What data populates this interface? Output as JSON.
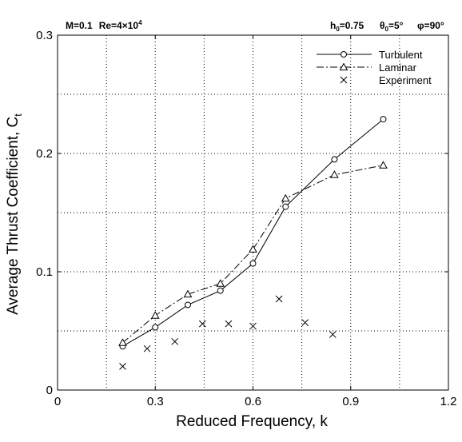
{
  "chart_data": {
    "type": "line",
    "xlabel": "Reduced Frequency, k",
    "ylabel": "Average Thrust Coefficient, C",
    "ylabel_sub": "t",
    "xlim": [
      0,
      1.2
    ],
    "ylim": [
      0,
      0.3
    ],
    "x_ticks": [
      0,
      0.3,
      0.6,
      0.9,
      1.2
    ],
    "x_tick_labels": [
      "0",
      "0.3",
      "0.6",
      "0.9",
      "1.2"
    ],
    "y_ticks": [
      0,
      0.1,
      0.2,
      0.3
    ],
    "y_tick_labels": [
      "0",
      "0.1",
      "0.2",
      "0.3"
    ],
    "grid": true,
    "legend_position": "top-right",
    "annotations": {
      "left": {
        "m_label": "M=0.1",
        "re_label": "Re=4×10",
        "re_exp": "4"
      },
      "right": {
        "h_label": "h",
        "h_sub": "0",
        "h_value": "=0.75",
        "theta_label": "θ",
        "theta_sub": "0",
        "theta_value": "=5°",
        "phi_label": "φ=90°"
      }
    },
    "series": [
      {
        "name": "Turbulent",
        "line": "solid",
        "marker": "circle",
        "x": [
          0.2,
          0.3,
          0.4,
          0.5,
          0.6,
          0.7,
          0.85,
          1.0
        ],
        "y": [
          0.037,
          0.053,
          0.072,
          0.084,
          0.107,
          0.155,
          0.195,
          0.229
        ]
      },
      {
        "name": "Laminar",
        "line": "dashdot",
        "marker": "triangle",
        "x": [
          0.2,
          0.3,
          0.4,
          0.5,
          0.6,
          0.7,
          0.85,
          1.0
        ],
        "y": [
          0.04,
          0.063,
          0.081,
          0.09,
          0.119,
          0.162,
          0.182,
          0.19
        ]
      },
      {
        "name": "Experiment",
        "line": "none",
        "marker": "x",
        "x": [
          0.2,
          0.275,
          0.36,
          0.445,
          0.525,
          0.6,
          0.68,
          0.76,
          0.845
        ],
        "y": [
          0.02,
          0.035,
          0.041,
          0.056,
          0.056,
          0.054,
          0.077,
          0.057,
          0.047
        ]
      }
    ]
  }
}
